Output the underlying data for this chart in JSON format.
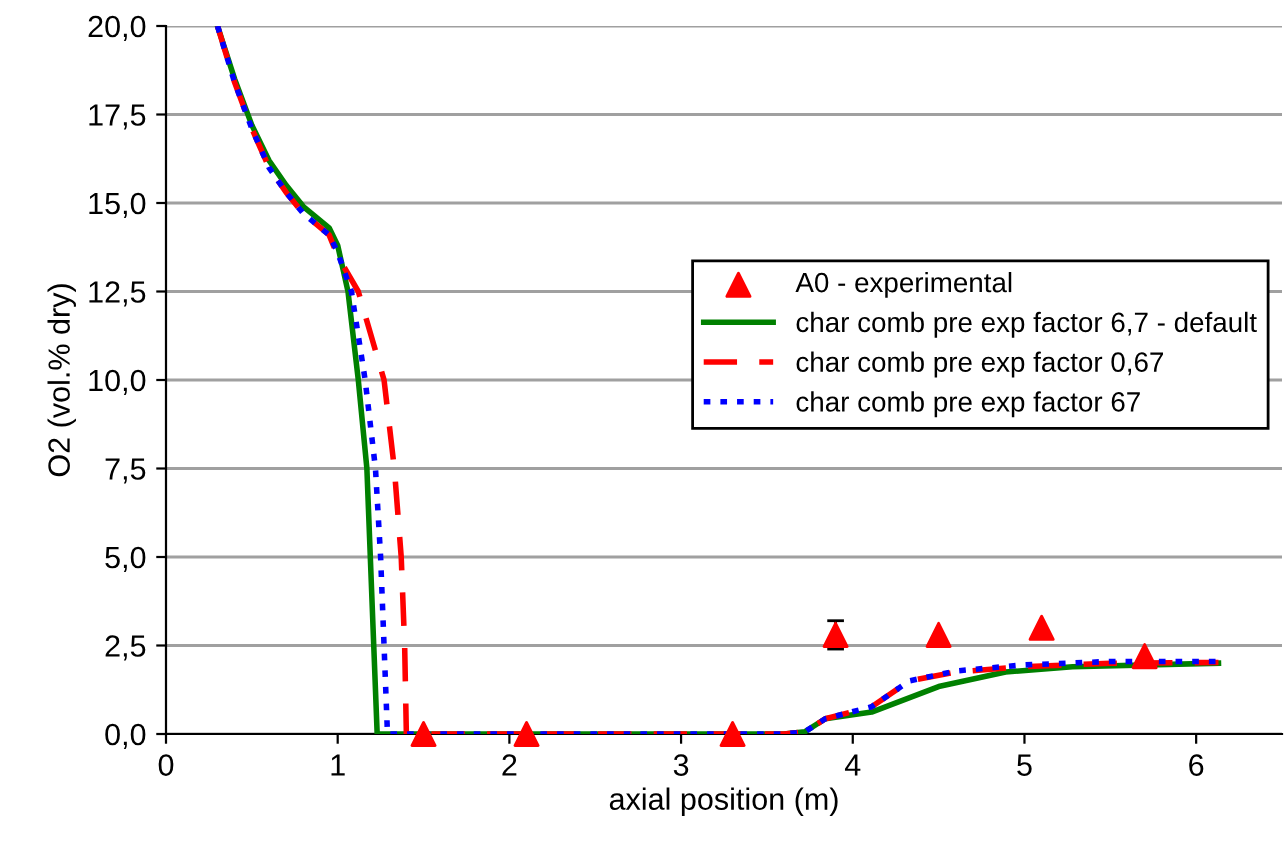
{
  "chart_data": {
    "type": "line",
    "xlabel": "axial position (m)",
    "ylabel": "O2 (vol.% dry)",
    "xlim": [
      0,
      6.5
    ],
    "xticks": [
      0,
      1,
      2,
      3,
      4,
      5,
      6
    ],
    "ylim": [
      0,
      20
    ],
    "yticks": [
      {
        "value": 0,
        "label": "0,0"
      },
      {
        "value": 2.5,
        "label": "2,5"
      },
      {
        "value": 5,
        "label": "5,0"
      },
      {
        "value": 7.5,
        "label": "7,5"
      },
      {
        "value": 10,
        "label": "10,0"
      },
      {
        "value": 12.5,
        "label": "12,5"
      },
      {
        "value": 15,
        "label": "15,0"
      },
      {
        "value": 17.5,
        "label": "17,5"
      },
      {
        "value": 20,
        "label": "20,0"
      }
    ],
    "grid": "y",
    "legend": "center right",
    "series": [
      {
        "name": "A0 - experimental",
        "type": "scatter",
        "marker": "triangle",
        "color": "#ff0000",
        "x": [
          1.5,
          2.1,
          3.3,
          3.9,
          4.5,
          5.1,
          5.7
        ],
        "values": [
          0,
          0,
          0,
          2.8,
          2.8,
          3.0,
          2.2
        ],
        "errors": [
          null,
          null,
          null,
          0.4,
          null,
          null,
          null
        ]
      },
      {
        "name": "char comb pre exp factor 6,7 - default",
        "line_style": "solid",
        "color": "#008000",
        "x": [
          0.3,
          0.4,
          0.5,
          0.6,
          0.7,
          0.8,
          0.95,
          1.0,
          1.06,
          1.12,
          1.17,
          1.19,
          1.21,
          1.23,
          1.5,
          2.5,
          3.6,
          3.72,
          3.84,
          4.11,
          4.5,
          4.89,
          5.28,
          6.13
        ],
        "values": [
          20.0,
          18.5,
          17.2,
          16.2,
          15.5,
          14.9,
          14.3,
          13.8,
          12.5,
          10.0,
          7.5,
          5.0,
          2.5,
          0,
          0,
          0,
          0,
          0.06,
          0.43,
          0.62,
          1.34,
          1.75,
          1.9,
          2.0
        ]
      },
      {
        "name": "char comb pre exp factor 0,67",
        "line_style": "dashed",
        "color": "#ff0000",
        "x": [
          0.3,
          0.4,
          0.5,
          0.6,
          0.7,
          0.8,
          0.95,
          1.0,
          1.12,
          1.27,
          1.33,
          1.37,
          1.39,
          1.4,
          2.0,
          3.0,
          3.6,
          3.72,
          3.84,
          4.11,
          4.33,
          4.6,
          4.99,
          5.5,
          6.13
        ],
        "values": [
          20.0,
          18.4,
          17.1,
          16.0,
          15.3,
          14.7,
          14.1,
          13.5,
          12.5,
          10.0,
          7.5,
          5.0,
          2.5,
          0,
          0,
          0,
          0,
          0.06,
          0.43,
          0.77,
          1.5,
          1.75,
          1.9,
          2.0,
          2.02
        ]
      },
      {
        "name": "char comb pre exp factor 67",
        "line_style": "dotted",
        "color": "#0000ff",
        "x": [
          0.3,
          0.4,
          0.5,
          0.6,
          0.7,
          0.8,
          0.95,
          1.0,
          1.08,
          1.16,
          1.22,
          1.25,
          1.27,
          1.29,
          2.0,
          3.0,
          3.6,
          3.72,
          3.84,
          4.11,
          4.33,
          4.6,
          4.99,
          5.5,
          6.13
        ],
        "values": [
          20.0,
          18.4,
          17.1,
          16.0,
          15.3,
          14.7,
          14.1,
          13.6,
          12.5,
          10.0,
          7.5,
          5.0,
          2.5,
          0,
          0,
          0,
          0,
          0.06,
          0.43,
          0.77,
          1.5,
          1.78,
          1.95,
          2.05,
          2.05
        ]
      }
    ]
  }
}
